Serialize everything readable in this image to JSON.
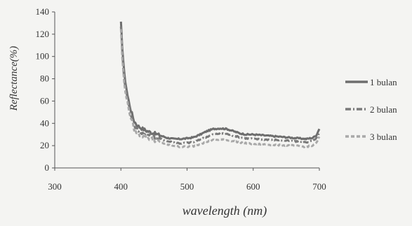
{
  "chart_data": {
    "type": "line",
    "xlabel": "wavelength (nm)",
    "ylabel": "Reflectance(%)",
    "xlim": [
      300,
      700
    ],
    "ylim": [
      0,
      140
    ],
    "xticks": [
      300,
      400,
      500,
      600,
      700
    ],
    "yticks": [
      0,
      20,
      40,
      60,
      80,
      100,
      120,
      140
    ],
    "grid": false,
    "legend_position": "right",
    "series": [
      {
        "name": "1 bulan",
        "color": "#6e6e6e",
        "dash": "solid",
        "x": [
          400,
          402,
          405,
          410,
          415,
          420,
          425,
          430,
          440,
          450,
          460,
          470,
          480,
          490,
          500,
          510,
          520,
          530,
          540,
          550,
          560,
          570,
          580,
          590,
          600,
          620,
          640,
          660,
          680,
          690,
          695,
          700
        ],
        "y": [
          130,
          110,
          85,
          65,
          52,
          42,
          38,
          36,
          33,
          31,
          29,
          27,
          26,
          26,
          26.5,
          27.5,
          30,
          33,
          35,
          35.5,
          35,
          33,
          31,
          30,
          30,
          29,
          28,
          27,
          26,
          27,
          29,
          35
        ]
      },
      {
        "name": "2 bulan",
        "color": "#7a7a7a",
        "dash": "dashdot",
        "x": [
          400,
          402,
          405,
          410,
          415,
          420,
          425,
          430,
          440,
          450,
          460,
          470,
          480,
          490,
          500,
          510,
          520,
          530,
          540,
          550,
          560,
          570,
          580,
          590,
          600,
          620,
          640,
          660,
          680,
          690,
          695,
          700
        ],
        "y": [
          128,
          105,
          80,
          62,
          48,
          38,
          34,
          32,
          30,
          28,
          26,
          24,
          23,
          22,
          22.5,
          23,
          25.5,
          28,
          30,
          31,
          30.5,
          29,
          27.5,
          26.5,
          26,
          25.5,
          25,
          24,
          23,
          24,
          26,
          32
        ]
      },
      {
        "name": "3 bulan",
        "color": "#a8a8a8",
        "dash": "dashed",
        "x": [
          400,
          402,
          405,
          410,
          415,
          420,
          425,
          430,
          440,
          450,
          460,
          470,
          480,
          490,
          500,
          510,
          520,
          530,
          540,
          550,
          560,
          570,
          580,
          590,
          600,
          620,
          640,
          660,
          680,
          690,
          695,
          700
        ],
        "y": [
          125,
          100,
          76,
          58,
          45,
          35,
          31,
          29,
          27,
          25,
          23,
          21,
          20,
          19,
          19,
          19.5,
          21.5,
          23.5,
          25,
          25.5,
          25,
          24,
          23,
          22,
          21.5,
          21,
          20.5,
          20,
          19,
          20,
          22,
          28
        ]
      }
    ]
  }
}
